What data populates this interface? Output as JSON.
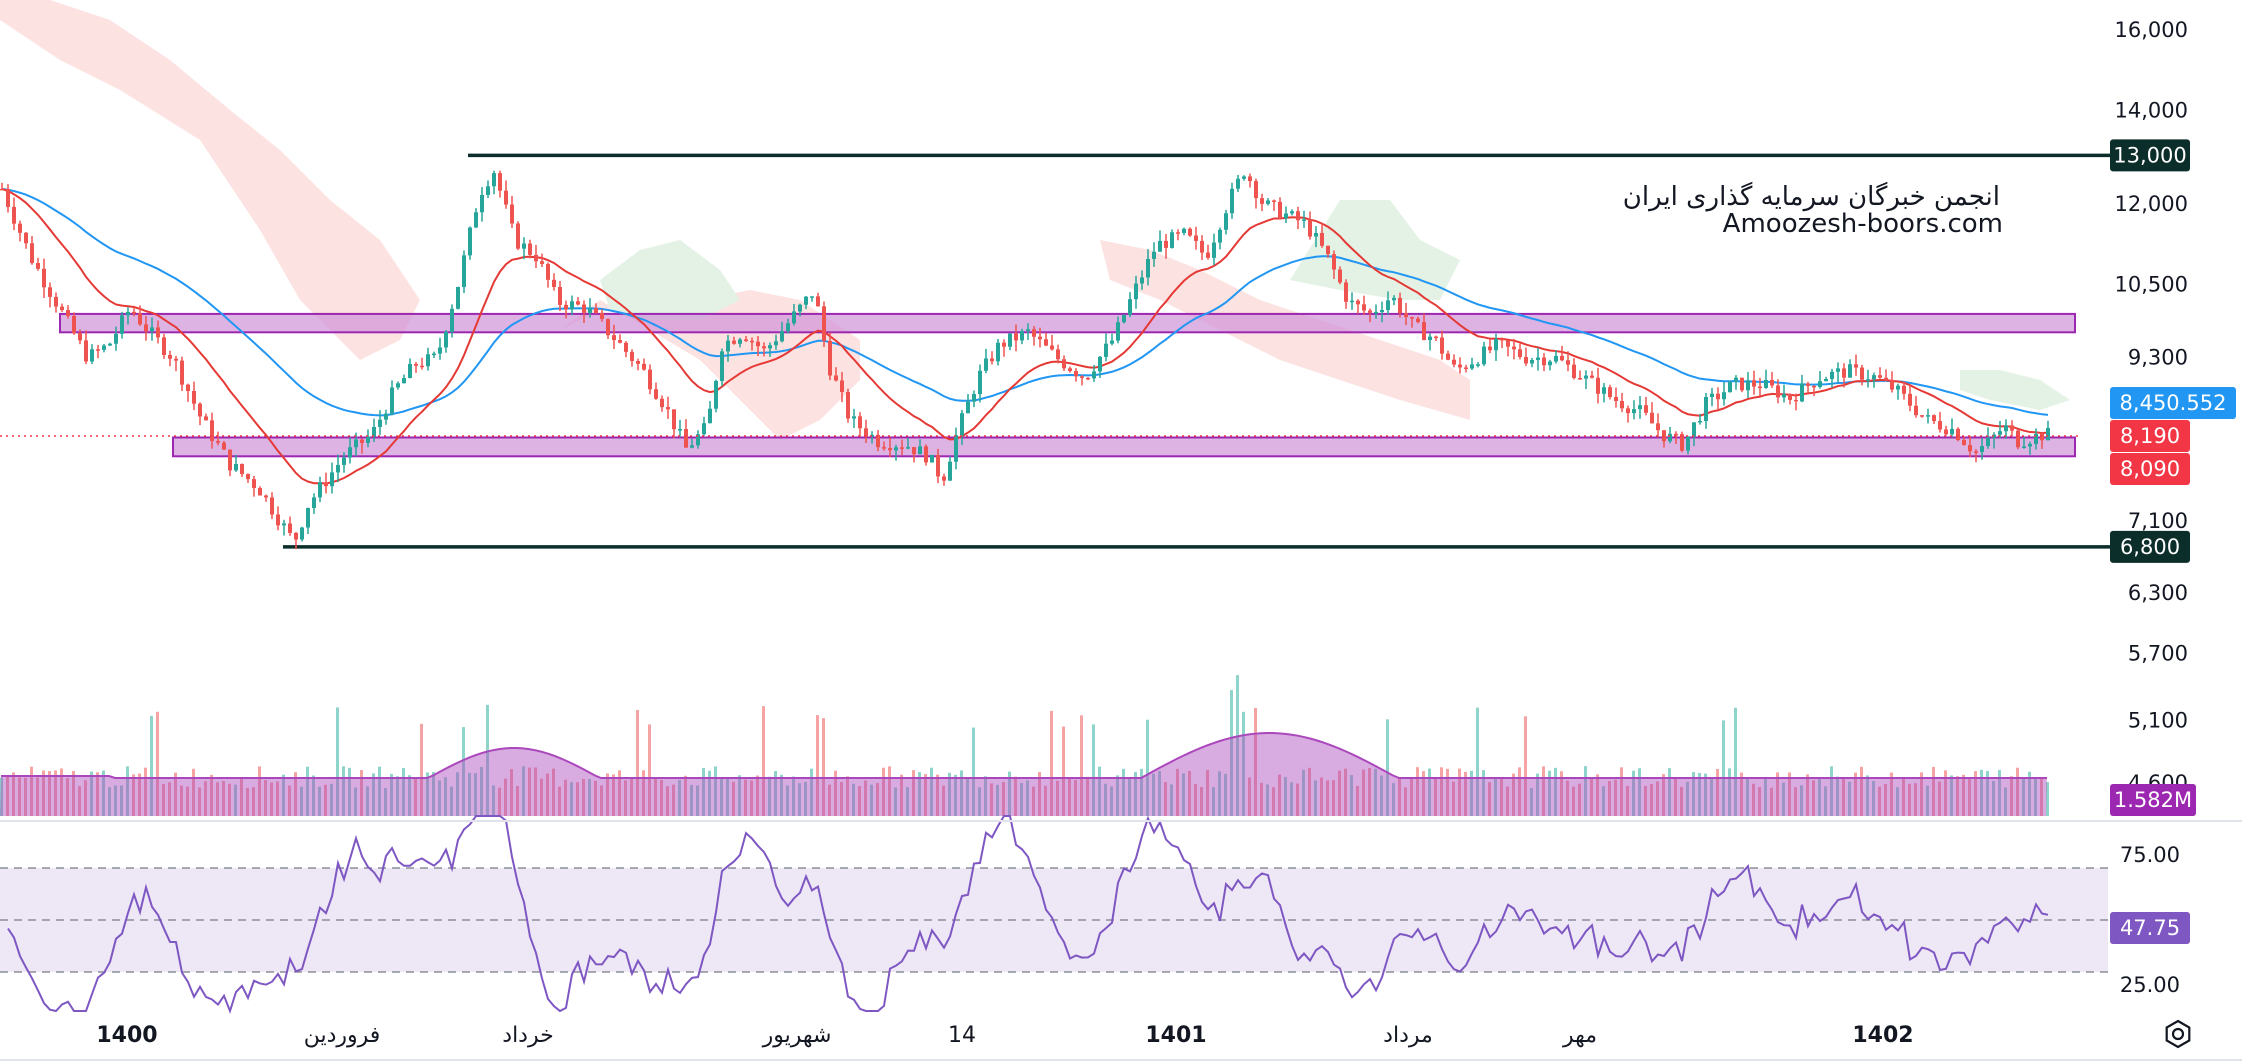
{
  "watermark": {
    "line1": "انجمن خبرگان سرمایه گذاری ایران",
    "line2": "Amoozesh-boors.com"
  },
  "colors": {
    "up": "#26a69a",
    "down": "#ef5350",
    "ema_fast": "#e53935",
    "ema_slow": "#2196f3",
    "level_line": "#0b2e2a",
    "zone_fill": "#ce93d8",
    "zone_border": "#9c27b0",
    "volume_ma": "#ab47bc",
    "rsi": "#7e57c2",
    "rsi_band": "#ede7f6",
    "cloud_bear": "#fde2e2",
    "cloud_bull": "#e3f2e5"
  },
  "icons": {
    "settings": "settings-gear-icon"
  },
  "chart_data": {
    "type": "candlestick",
    "price_axis": {
      "ticks": [
        "16,000",
        "14,000",
        "12,000",
        "10,500",
        "9,300",
        "7,100",
        "6,300",
        "5,700",
        "5,100",
        "4,600"
      ],
      "scale": "log",
      "range": [
        4400,
        16500
      ]
    },
    "time_axis": {
      "labels": [
        "1400",
        "فروردین",
        "خرداد",
        "شهریور",
        "14",
        "1401",
        "مرداد",
        "مهر",
        "1402"
      ]
    },
    "levels": [
      {
        "label": "13,000",
        "value": 13000,
        "color": "#0b2e2a"
      },
      {
        "label": "6,800",
        "value": 6800,
        "color": "#0b2e2a"
      }
    ],
    "zones": [
      {
        "from": 9700,
        "to": 10000
      },
      {
        "from": 7900,
        "to": 8150
      }
    ],
    "price_tags": [
      {
        "label": "8,450.552",
        "value": 8450.552,
        "color": "#2196f3"
      },
      {
        "label": "8,190",
        "value": 8190,
        "color": "#f23645"
      },
      {
        "label": "8,090",
        "value": 8090,
        "color": "#f23645"
      }
    ],
    "last_price": 8190,
    "close_path": [
      [
        0,
        12300
      ],
      [
        20,
        11000
      ],
      [
        45,
        9900
      ],
      [
        60,
        9300
      ],
      [
        75,
        9500
      ],
      [
        90,
        10100
      ],
      [
        100,
        9800
      ],
      [
        120,
        9300
      ],
      [
        140,
        8400
      ],
      [
        160,
        7800
      ],
      [
        180,
        7500
      ],
      [
        195,
        7100
      ],
      [
        205,
        6850
      ],
      [
        215,
        7300
      ],
      [
        240,
        7900
      ],
      [
        260,
        8200
      ],
      [
        275,
        8800
      ],
      [
        290,
        9200
      ],
      [
        305,
        9300
      ],
      [
        320,
        10500
      ],
      [
        335,
        12200
      ],
      [
        345,
        12700
      ],
      [
        360,
        11300
      ],
      [
        375,
        11000
      ],
      [
        390,
        10200
      ],
      [
        410,
        10100
      ],
      [
        430,
        9600
      ],
      [
        450,
        9100
      ],
      [
        465,
        8600
      ],
      [
        480,
        8000
      ],
      [
        495,
        8300
      ],
      [
        505,
        9500
      ],
      [
        520,
        9700
      ],
      [
        535,
        9400
      ],
      [
        550,
        9800
      ],
      [
        570,
        10400
      ],
      [
        580,
        9200
      ],
      [
        595,
        8400
      ],
      [
        615,
        8100
      ],
      [
        635,
        8050
      ],
      [
        650,
        7900
      ],
      [
        660,
        7600
      ],
      [
        670,
        8200
      ],
      [
        685,
        9000
      ],
      [
        700,
        9500
      ],
      [
        720,
        9700
      ],
      [
        740,
        9300
      ],
      [
        760,
        9000
      ],
      [
        780,
        9600
      ],
      [
        795,
        10400
      ],
      [
        810,
        11200
      ],
      [
        830,
        11400
      ],
      [
        845,
        11000
      ],
      [
        860,
        12000
      ],
      [
        872,
        12700
      ],
      [
        885,
        12000
      ],
      [
        900,
        11800
      ],
      [
        915,
        11600
      ],
      [
        930,
        11000
      ],
      [
        945,
        10200
      ],
      [
        960,
        10000
      ],
      [
        975,
        10300
      ],
      [
        990,
        9800
      ],
      [
        1005,
        9600
      ],
      [
        1020,
        9100
      ],
      [
        1035,
        9300
      ],
      [
        1050,
        9500
      ],
      [
        1070,
        9300
      ],
      [
        1090,
        9300
      ],
      [
        1110,
        9000
      ],
      [
        1130,
        8700
      ],
      [
        1150,
        8500
      ],
      [
        1165,
        8200
      ],
      [
        1180,
        8050
      ],
      [
        1195,
        8600
      ],
      [
        1215,
        8900
      ],
      [
        1235,
        8900
      ],
      [
        1255,
        8700
      ],
      [
        1275,
        9000
      ],
      [
        1295,
        9100
      ],
      [
        1315,
        9000
      ],
      [
        1330,
        8800
      ],
      [
        1350,
        8400
      ],
      [
        1370,
        8250
      ],
      [
        1385,
        7950
      ],
      [
        1395,
        8100
      ],
      [
        1405,
        8300
      ],
      [
        1415,
        8100
      ],
      [
        1432,
        8190
      ]
    ],
    "volume": {
      "last_label": "1.582M",
      "spikes": [
        [
          325,
          0.45
        ],
        [
          340,
          0.48
        ],
        [
          805,
          0.4
        ],
        [
          865,
          0.58
        ],
        [
          275,
          0.2
        ],
        [
          560,
          0.15
        ],
        [
          710,
          0.2
        ],
        [
          960,
          0.2
        ]
      ]
    },
    "rsi": {
      "levels": [
        "75.00",
        "25.00"
      ],
      "overbought": 70,
      "oversold": 30,
      "value": 47.75,
      "value_label": "47.75"
    }
  }
}
